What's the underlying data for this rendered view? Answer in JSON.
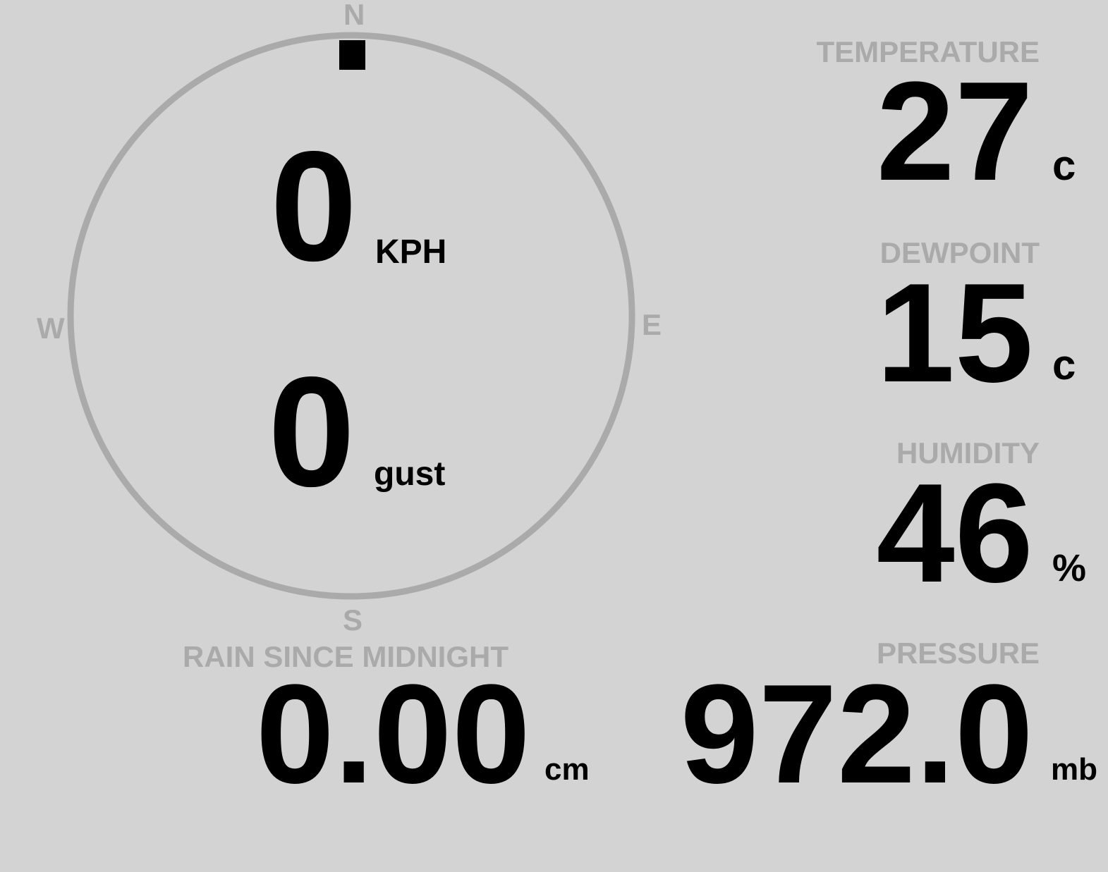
{
  "compass": {
    "n": "N",
    "e": "E",
    "s": "S",
    "w": "W",
    "direction_deg": 0,
    "ring_color": "#aaaaaa",
    "needle_color": "#000000"
  },
  "wind": {
    "speed": "0",
    "speed_unit": "KPH",
    "gust": "0",
    "gust_unit": "gust"
  },
  "temperature": {
    "label": "TEMPERATURE",
    "value": "27",
    "unit": "c"
  },
  "dewpoint": {
    "label": "DEWPOINT",
    "value": "15",
    "unit": "c"
  },
  "humidity": {
    "label": "HUMIDITY",
    "value": "46",
    "unit": "%"
  },
  "pressure": {
    "label": "PRESSURE",
    "value": "972.0",
    "unit": "mb"
  },
  "rain": {
    "label": "RAIN SINCE MIDNIGHT",
    "value": "0.00",
    "unit": "cm"
  }
}
